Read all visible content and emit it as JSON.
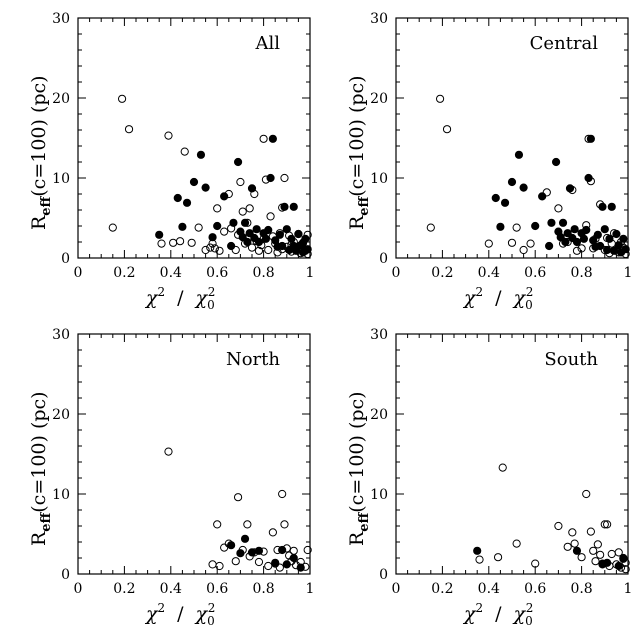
{
  "chart_data": [
    {
      "type": "scatter",
      "title": "All",
      "xlim": [
        0,
        1
      ],
      "ylim": [
        0,
        30
      ],
      "xticks": [
        "0",
        "0.2",
        "0.4",
        "0.6",
        "0.8",
        "1"
      ],
      "yticks": [
        "0",
        "10",
        "20",
        "30"
      ],
      "xlabel_parts": [
        "χ",
        "2",
        "/",
        "χ",
        "0",
        "2"
      ],
      "ylabel_parts": [
        "R",
        "eff",
        "(c=100)  (pc)"
      ],
      "series": [
        {
          "marker": "open-circle",
          "points": [
            [
              0.15,
              3.8
            ],
            [
              0.19,
              19.9
            ],
            [
              0.22,
              16.1
            ],
            [
              0.36,
              1.8
            ],
            [
              0.39,
              15.3
            ],
            [
              0.41,
              1.9
            ],
            [
              0.44,
              2.1
            ],
            [
              0.46,
              13.3
            ],
            [
              0.49,
              1.9
            ],
            [
              0.52,
              3.8
            ],
            [
              0.55,
              1.0
            ],
            [
              0.57,
              1.3
            ],
            [
              0.58,
              1.8
            ],
            [
              0.59,
              1.2
            ],
            [
              0.6,
              6.2
            ],
            [
              0.61,
              0.9
            ],
            [
              0.63,
              3.3
            ],
            [
              0.65,
              8.0
            ],
            [
              0.66,
              3.7
            ],
            [
              0.68,
              1.0
            ],
            [
              0.69,
              2.9
            ],
            [
              0.7,
              9.5
            ],
            [
              0.71,
              5.8
            ],
            [
              0.72,
              1.8
            ],
            [
              0.73,
              4.4
            ],
            [
              0.74,
              6.2
            ],
            [
              0.75,
              1.3
            ],
            [
              0.76,
              8.0
            ],
            [
              0.77,
              2.1
            ],
            [
              0.78,
              0.9
            ],
            [
              0.79,
              1.6
            ],
            [
              0.8,
              2.4
            ],
            [
              0.81,
              9.8
            ],
            [
              0.82,
              1.0
            ],
            [
              0.83,
              5.2
            ],
            [
              0.84,
              2.7
            ],
            [
              0.85,
              1.8
            ],
            [
              0.86,
              0.7
            ],
            [
              0.87,
              3.1
            ],
            [
              0.88,
              6.3
            ],
            [
              0.89,
              10.0
            ],
            [
              0.9,
              1.4
            ],
            [
              0.91,
              2.8
            ],
            [
              0.92,
              0.8
            ],
            [
              0.93,
              2.0
            ],
            [
              0.94,
              1.2
            ],
            [
              0.95,
              3.0
            ],
            [
              0.96,
              0.6
            ],
            [
              0.97,
              1.9
            ],
            [
              0.98,
              0.9
            ],
            [
              0.99,
              2.9
            ],
            [
              0.88,
              1.1
            ],
            [
              0.92,
              1.7
            ],
            [
              0.96,
              1.4
            ],
            [
              0.99,
              0.5
            ],
            [
              0.8,
              14.9
            ]
          ]
        },
        {
          "marker": "filled-circle",
          "points": [
            [
              0.35,
              2.9
            ],
            [
              0.43,
              7.5
            ],
            [
              0.45,
              3.9
            ],
            [
              0.47,
              6.9
            ],
            [
              0.5,
              9.5
            ],
            [
              0.53,
              12.9
            ],
            [
              0.55,
              8.8
            ],
            [
              0.58,
              2.6
            ],
            [
              0.6,
              4.0
            ],
            [
              0.63,
              7.7
            ],
            [
              0.66,
              1.5
            ],
            [
              0.67,
              4.4
            ],
            [
              0.69,
              12.0
            ],
            [
              0.7,
              3.3
            ],
            [
              0.71,
              2.6
            ],
            [
              0.72,
              4.4
            ],
            [
              0.73,
              2.0
            ],
            [
              0.74,
              3.1
            ],
            [
              0.75,
              8.7
            ],
            [
              0.76,
              2.5
            ],
            [
              0.77,
              3.6
            ],
            [
              0.78,
              2.0
            ],
            [
              0.8,
              3.1
            ],
            [
              0.81,
              2.4
            ],
            [
              0.82,
              3.5
            ],
            [
              0.83,
              10.0
            ],
            [
              0.84,
              14.9
            ],
            [
              0.85,
              2.2
            ],
            [
              0.86,
              1.4
            ],
            [
              0.87,
              2.9
            ],
            [
              0.88,
              1.5
            ],
            [
              0.89,
              6.4
            ],
            [
              0.9,
              3.6
            ],
            [
              0.91,
              1.0
            ],
            [
              0.92,
              2.4
            ],
            [
              0.93,
              6.4
            ],
            [
              0.94,
              0.9
            ],
            [
              0.95,
              3.0
            ],
            [
              0.96,
              1.6
            ],
            [
              0.97,
              0.7
            ],
            [
              0.98,
              2.4
            ],
            [
              0.99,
              1.1
            ],
            [
              0.93,
              1.5
            ],
            [
              0.97,
              1.9
            ]
          ]
        }
      ]
    },
    {
      "type": "scatter",
      "title": "Central",
      "xlim": [
        0,
        1
      ],
      "ylim": [
        0,
        30
      ],
      "xticks": [
        "0",
        "0.2",
        "0.4",
        "0.6",
        "0.8",
        "1"
      ],
      "yticks": [
        "0",
        "10",
        "20",
        "30"
      ],
      "xlabel_parts": [
        "χ",
        "2",
        "/",
        "χ",
        "0",
        "2"
      ],
      "ylabel_parts": [
        "R",
        "eff",
        "(c=100)  (pc)"
      ],
      "series": [
        {
          "marker": "open-circle",
          "points": [
            [
              0.15,
              3.8
            ],
            [
              0.19,
              19.9
            ],
            [
              0.22,
              16.1
            ],
            [
              0.4,
              1.8
            ],
            [
              0.5,
              1.9
            ],
            [
              0.52,
              3.8
            ],
            [
              0.55,
              1.0
            ],
            [
              0.58,
              1.8
            ],
            [
              0.65,
              8.2
            ],
            [
              0.7,
              6.2
            ],
            [
              0.72,
              1.8
            ],
            [
              0.74,
              2.0
            ],
            [
              0.76,
              8.5
            ],
            [
              0.78,
              0.9
            ],
            [
              0.8,
              1.2
            ],
            [
              0.82,
              4.1
            ],
            [
              0.84,
              9.6
            ],
            [
              0.83,
              14.9
            ],
            [
              0.85,
              1.2
            ],
            [
              0.86,
              2.4
            ],
            [
              0.88,
              6.7
            ],
            [
              0.9,
              1.0
            ],
            [
              0.91,
              2.5
            ],
            [
              0.92,
              0.6
            ],
            [
              0.93,
              1.8
            ],
            [
              0.94,
              3.1
            ],
            [
              0.95,
              1.1
            ],
            [
              0.96,
              0.7
            ],
            [
              0.97,
              2.0
            ],
            [
              0.98,
              1.3
            ],
            [
              0.99,
              0.5
            ]
          ]
        },
        {
          "marker": "filled-circle",
          "points": [
            [
              0.43,
              7.5
            ],
            [
              0.45,
              3.9
            ],
            [
              0.47,
              6.9
            ],
            [
              0.5,
              9.5
            ],
            [
              0.53,
              12.9
            ],
            [
              0.55,
              8.8
            ],
            [
              0.6,
              4.0
            ],
            [
              0.63,
              7.7
            ],
            [
              0.66,
              1.5
            ],
            [
              0.67,
              4.4
            ],
            [
              0.69,
              12.0
            ],
            [
              0.7,
              3.3
            ],
            [
              0.71,
              2.6
            ],
            [
              0.72,
              4.4
            ],
            [
              0.73,
              2.0
            ],
            [
              0.74,
              3.1
            ],
            [
              0.75,
              8.7
            ],
            [
              0.76,
              2.5
            ],
            [
              0.77,
              3.6
            ],
            [
              0.78,
              2.0
            ],
            [
              0.8,
              3.1
            ],
            [
              0.81,
              2.4
            ],
            [
              0.82,
              3.5
            ],
            [
              0.83,
              10.0
            ],
            [
              0.84,
              14.9
            ],
            [
              0.85,
              2.2
            ],
            [
              0.86,
              1.4
            ],
            [
              0.87,
              2.9
            ],
            [
              0.88,
              1.5
            ],
            [
              0.89,
              6.4
            ],
            [
              0.9,
              3.6
            ],
            [
              0.91,
              1.0
            ],
            [
              0.92,
              2.4
            ],
            [
              0.93,
              6.4
            ],
            [
              0.94,
              0.9
            ],
            [
              0.95,
              3.0
            ],
            [
              0.96,
              1.6
            ],
            [
              0.97,
              0.7
            ],
            [
              0.98,
              2.4
            ],
            [
              0.99,
              1.1
            ]
          ]
        }
      ]
    },
    {
      "type": "scatter",
      "title": "North",
      "xlim": [
        0,
        1
      ],
      "ylim": [
        0,
        30
      ],
      "xticks": [
        "0",
        "0.2",
        "0.4",
        "0.6",
        "0.8",
        "1"
      ],
      "yticks": [
        "0",
        "10",
        "20",
        "30"
      ],
      "xlabel_parts": [
        "χ",
        "2",
        "/",
        "χ",
        "0",
        "2"
      ],
      "ylabel_parts": [
        "R",
        "eff",
        "(c=100)  (pc)"
      ],
      "series": [
        {
          "marker": "open-circle",
          "points": [
            [
              0.39,
              15.3
            ],
            [
              0.58,
              1.2
            ],
            [
              0.6,
              6.2
            ],
            [
              0.61,
              1.0
            ],
            [
              0.63,
              3.3
            ],
            [
              0.65,
              3.8
            ],
            [
              0.68,
              1.6
            ],
            [
              0.69,
              9.6
            ],
            [
              0.71,
              3.0
            ],
            [
              0.73,
              6.2
            ],
            [
              0.74,
              2.2
            ],
            [
              0.76,
              2.7
            ],
            [
              0.78,
              1.5
            ],
            [
              0.8,
              2.8
            ],
            [
              0.82,
              1.0
            ],
            [
              0.84,
              5.2
            ],
            [
              0.85,
              1.3
            ],
            [
              0.86,
              3.0
            ],
            [
              0.87,
              0.8
            ],
            [
              0.88,
              10.0
            ],
            [
              0.89,
              6.2
            ],
            [
              0.9,
              3.2
            ],
            [
              0.91,
              2.3
            ],
            [
              0.92,
              1.6
            ],
            [
              0.93,
              2.9
            ],
            [
              0.94,
              1.1
            ],
            [
              0.96,
              1.5
            ],
            [
              0.98,
              0.9
            ],
            [
              0.99,
              3.0
            ]
          ]
        },
        {
          "marker": "filled-circle",
          "points": [
            [
              0.66,
              3.6
            ],
            [
              0.7,
              2.6
            ],
            [
              0.72,
              4.4
            ],
            [
              0.75,
              2.7
            ],
            [
              0.78,
              2.9
            ],
            [
              0.85,
              1.4
            ],
            [
              0.88,
              3.0
            ],
            [
              0.9,
              1.2
            ],
            [
              0.93,
              2.0
            ],
            [
              0.96,
              0.8
            ]
          ]
        }
      ]
    },
    {
      "type": "scatter",
      "title": "South",
      "xlim": [
        0,
        1
      ],
      "ylim": [
        0,
        30
      ],
      "xticks": [
        "0",
        "0.2",
        "0.4",
        "0.6",
        "0.8",
        "1"
      ],
      "yticks": [
        "0",
        "10",
        "20",
        "30"
      ],
      "xlabel_parts": [
        "χ",
        "2",
        "/",
        "χ",
        "0",
        "2"
      ],
      "ylabel_parts": [
        "R",
        "eff",
        "(c=100)  (pc)"
      ],
      "series": [
        {
          "marker": "open-circle",
          "points": [
            [
              0.36,
              1.8
            ],
            [
              0.44,
              2.1
            ],
            [
              0.46,
              13.3
            ],
            [
              0.52,
              3.8
            ],
            [
              0.6,
              1.3
            ],
            [
              0.7,
              6.0
            ],
            [
              0.74,
              3.4
            ],
            [
              0.76,
              5.2
            ],
            [
              0.77,
              3.8
            ],
            [
              0.8,
              2.1
            ],
            [
              0.82,
              10.0
            ],
            [
              0.84,
              5.3
            ],
            [
              0.85,
              2.9
            ],
            [
              0.86,
              1.6
            ],
            [
              0.87,
              3.7
            ],
            [
              0.88,
              2.4
            ],
            [
              0.89,
              1.3
            ],
            [
              0.9,
              6.2
            ],
            [
              0.91,
              6.2
            ],
            [
              0.92,
              1.0
            ],
            [
              0.93,
              2.5
            ],
            [
              0.95,
              1.2
            ],
            [
              0.96,
              2.7
            ],
            [
              0.97,
              0.8
            ],
            [
              0.98,
              1.9
            ],
            [
              0.99,
              1.4
            ],
            [
              0.99,
              0.6
            ]
          ]
        },
        {
          "marker": "filled-circle",
          "points": [
            [
              0.35,
              2.9
            ],
            [
              0.78,
              2.9
            ],
            [
              0.89,
              1.2
            ],
            [
              0.91,
              1.4
            ],
            [
              0.96,
              1.0
            ],
            [
              0.98,
              2.0
            ]
          ]
        }
      ]
    }
  ]
}
